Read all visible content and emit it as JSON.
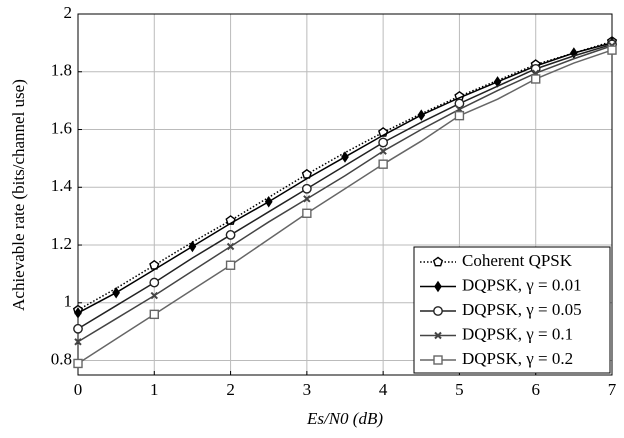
{
  "chart_data": {
    "type": "line",
    "xlabel": "Es/N0 (dB)",
    "ylabel": "Achievable rate (bits/channel use)",
    "x": [
      0,
      0.5,
      1,
      1.5,
      2,
      2.5,
      3,
      3.5,
      4,
      4.5,
      5,
      5.5,
      6,
      6.5,
      7
    ],
    "xlim": [
      0,
      7
    ],
    "xticks": [
      0,
      1,
      2,
      3,
      4,
      5,
      6,
      7
    ],
    "ylim": [
      0.75,
      2
    ],
    "yticks": [
      0.8,
      1,
      1.2,
      1.4,
      1.6,
      1.8,
      2
    ],
    "grid": true,
    "legend": "lower right",
    "series": [
      {
        "name": "Coherent QPSK",
        "color": "#000000",
        "dash": "dotted",
        "marker": "pentagon",
        "values": [
          0.975,
          1.05,
          1.13,
          1.21,
          1.285,
          1.365,
          1.445,
          1.52,
          1.59,
          1.655,
          1.715,
          1.77,
          1.825,
          1.865,
          1.905
        ]
      },
      {
        "name": "DQPSK, γ = 0.01",
        "color": "#000000",
        "marker": "diamond",
        "values": [
          0.965,
          1.035,
          1.115,
          1.195,
          1.275,
          1.35,
          1.43,
          1.505,
          1.58,
          1.65,
          1.71,
          1.765,
          1.82,
          1.865,
          1.9
        ]
      },
      {
        "name": "DQPSK, γ = 0.05",
        "color": "#222222",
        "marker": "circle",
        "values": [
          0.91,
          0.99,
          1.07,
          1.155,
          1.235,
          1.315,
          1.395,
          1.475,
          1.555,
          1.625,
          1.69,
          1.75,
          1.81,
          1.855,
          1.895
        ]
      },
      {
        "name": "DQPSK, γ = 0.1",
        "color": "#444444",
        "marker": "x",
        "values": [
          0.865,
          0.945,
          1.025,
          1.11,
          1.195,
          1.28,
          1.36,
          1.44,
          1.525,
          1.6,
          1.67,
          1.735,
          1.795,
          1.845,
          1.89
        ]
      },
      {
        "name": "DQPSK, γ = 0.2",
        "color": "#666666",
        "marker": "square",
        "values": [
          0.79,
          0.875,
          0.96,
          1.045,
          1.13,
          1.22,
          1.31,
          1.395,
          1.48,
          1.56,
          1.648,
          1.705,
          1.775,
          1.83,
          1.875
        ]
      }
    ]
  }
}
